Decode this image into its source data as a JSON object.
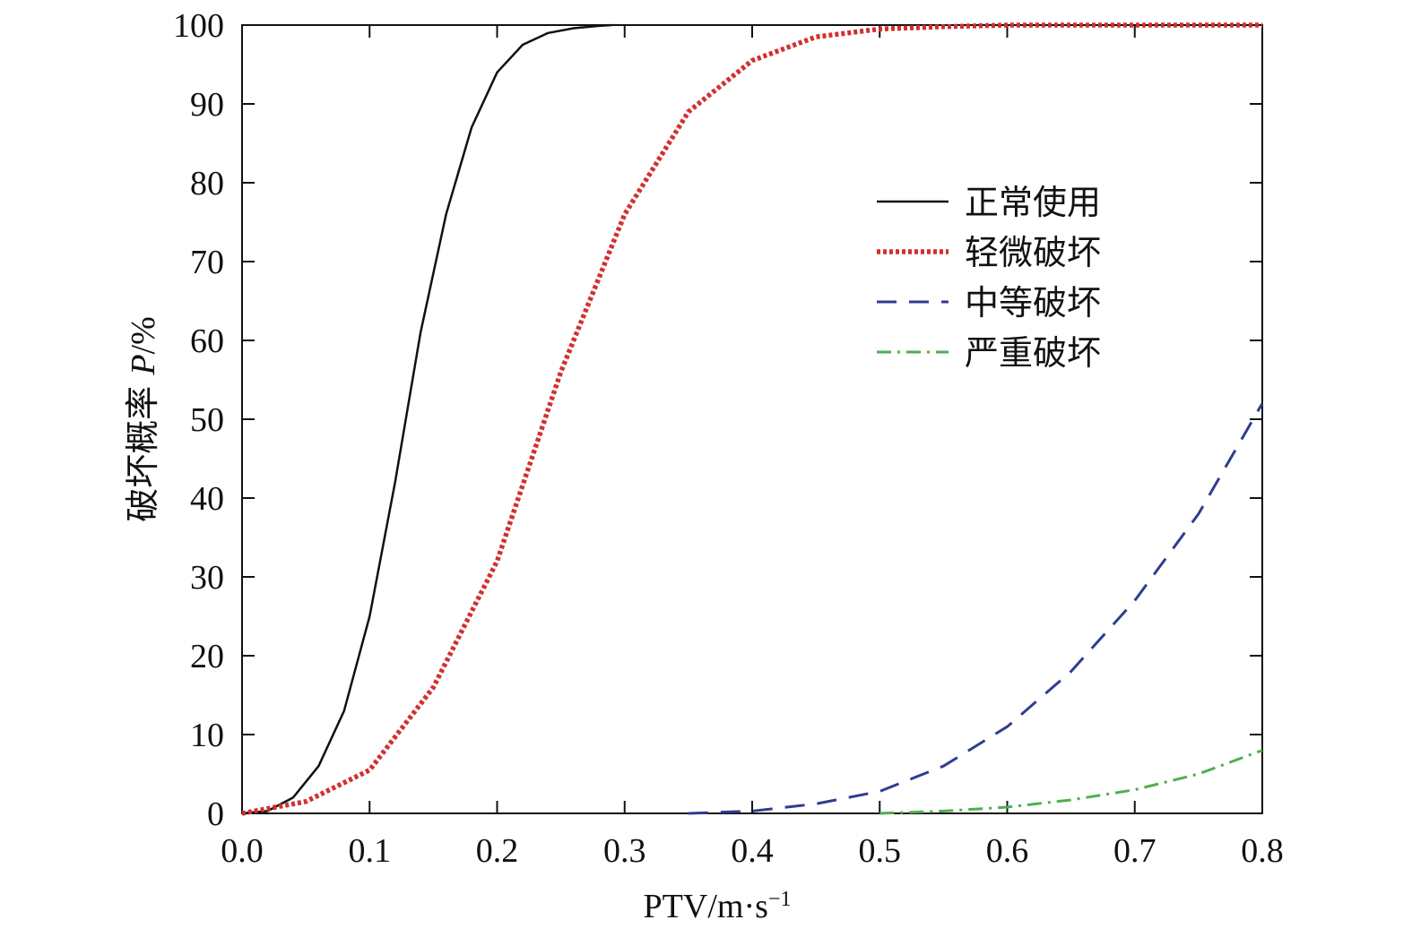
{
  "chart_data": {
    "type": "line",
    "xlabel_main": "PTV/m·s",
    "xlabel_sup": "−1",
    "ylabel_prefix": "破坏概率 ",
    "ylabel_var": "P",
    "ylabel_suffix": "/%",
    "xlim": [
      0,
      0.8
    ],
    "ylim": [
      0,
      100
    ],
    "xticks": [
      0.0,
      0.1,
      0.2,
      0.3,
      0.4,
      0.5,
      0.6,
      0.7,
      0.8
    ],
    "xtick_labels": [
      "0.0",
      "0.1",
      "0.2",
      "0.3",
      "0.4",
      "0.5",
      "0.6",
      "0.7",
      "0.8"
    ],
    "yticks": [
      0,
      10,
      20,
      30,
      40,
      50,
      60,
      70,
      80,
      90,
      100
    ],
    "ytick_labels": [
      "0",
      "10",
      "20",
      "30",
      "40",
      "50",
      "60",
      "70",
      "80",
      "90",
      "100"
    ],
    "grid": false,
    "legend_position": "right",
    "series": [
      {
        "name": "正常使用",
        "color": "#111111",
        "dash": "solid",
        "x": [
          0.0,
          0.02,
          0.04,
          0.06,
          0.08,
          0.1,
          0.12,
          0.14,
          0.16,
          0.18,
          0.2,
          0.22,
          0.24,
          0.26,
          0.28,
          0.29
        ],
        "y": [
          0.0,
          0.3,
          2.0,
          6.0,
          13.0,
          25.0,
          42.0,
          61.0,
          76.0,
          87.0,
          94.0,
          97.5,
          99.0,
          99.6,
          99.9,
          100.0
        ]
      },
      {
        "name": "轻微破坏",
        "color": "#d32f2f",
        "dash": "dotted",
        "x": [
          0.0,
          0.05,
          0.1,
          0.15,
          0.2,
          0.25,
          0.3,
          0.35,
          0.4,
          0.45,
          0.5,
          0.55,
          0.6,
          0.7,
          0.8
        ],
        "y": [
          0.0,
          1.5,
          5.5,
          16.0,
          32.0,
          56.0,
          76.0,
          89.0,
          95.5,
          98.5,
          99.5,
          99.8,
          100.0,
          100.0,
          100.0
        ]
      },
      {
        "name": "中等破坏",
        "color": "#2e3d8f",
        "dash": "dashed",
        "x": [
          0.35,
          0.4,
          0.45,
          0.5,
          0.55,
          0.6,
          0.65,
          0.7,
          0.75,
          0.8
        ],
        "y": [
          0.0,
          0.3,
          1.2,
          2.8,
          6.0,
          11.0,
          18.0,
          27.0,
          38.0,
          52.0
        ]
      },
      {
        "name": "严重破坏",
        "color": "#4caf50",
        "dash": "dashdot",
        "x": [
          0.5,
          0.55,
          0.6,
          0.65,
          0.7,
          0.75,
          0.8
        ],
        "y": [
          0.0,
          0.3,
          0.8,
          1.7,
          3.0,
          5.0,
          8.0
        ]
      }
    ]
  }
}
